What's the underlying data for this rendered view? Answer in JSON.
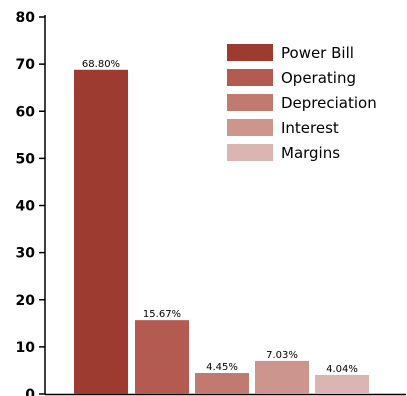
{
  "chart_data": {
    "type": "bar",
    "categories": [
      "Power Bill",
      "Operating",
      "Depreciation",
      "Interest",
      "Margins"
    ],
    "values": [
      68.8,
      15.67,
      4.45,
      7.03,
      4.04
    ],
    "data_labels": [
      "68.80%",
      "15.67%",
      "4.45%",
      "7.03%",
      "4.04%"
    ],
    "colors": [
      "#9e3b31",
      "#b35b50",
      "#c07a70",
      "#cc968f",
      "#dbb5b1"
    ],
    "ylim": [
      0,
      80
    ],
    "yticks": [
      0,
      10,
      20,
      30,
      40,
      50,
      60,
      70,
      80
    ],
    "ytick_labels": [
      "0",
      "10",
      "20",
      "30",
      "40",
      "50",
      "60",
      "70",
      "80"
    ],
    "xlabel": "",
    "ylabel": "",
    "title": "",
    "legend": {
      "position": "top-right",
      "entries": [
        "Power Bill",
        "Operating",
        "Depreciation",
        "Interest",
        "Margins"
      ]
    },
    "grid": false
  }
}
